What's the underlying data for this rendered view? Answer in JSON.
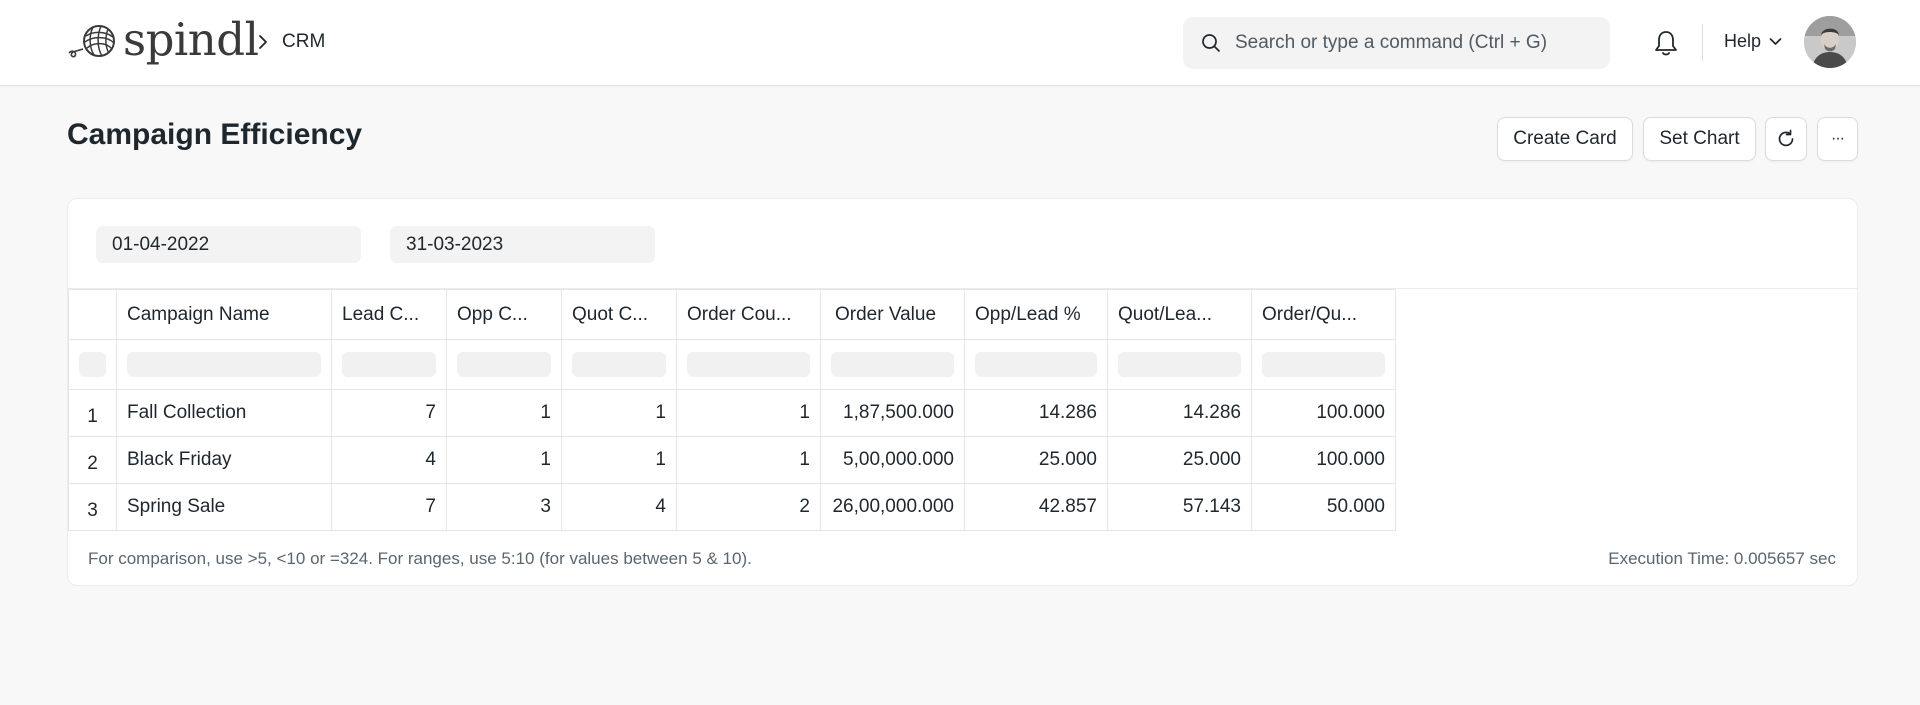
{
  "app": {
    "brand": "spindl",
    "breadcrumb": "CRM"
  },
  "search": {
    "placeholder": "Search or type a command (Ctrl + G)"
  },
  "nav": {
    "help_label": "Help"
  },
  "page": {
    "title": "Campaign Efficiency",
    "actions": {
      "create_card": "Create Card",
      "set_chart": "Set Chart",
      "more": "···"
    }
  },
  "filters": {
    "from_date": "01-04-2022",
    "to_date": "31-03-2023"
  },
  "table": {
    "columns": [
      "Campaign Name",
      "Lead C...",
      "Opp C...",
      "Quot C...",
      "Order Cou...",
      "Order Value",
      "Opp/Lead %",
      "Quot/Lea...",
      "Order/Qu..."
    ],
    "rows": [
      {
        "index": "1",
        "cells": [
          "Fall Collection",
          "7",
          "1",
          "1",
          "1",
          "1,87,500.000",
          "14.286",
          "14.286",
          "100.000"
        ]
      },
      {
        "index": "2",
        "cells": [
          "Black Friday",
          "4",
          "1",
          "1",
          "1",
          "5,00,000.000",
          "25.000",
          "25.000",
          "100.000"
        ]
      },
      {
        "index": "3",
        "cells": [
          "Spring Sale",
          "7",
          "3",
          "4",
          "2",
          "26,00,000.000",
          "42.857",
          "57.143",
          "50.000"
        ]
      }
    ]
  },
  "footer": {
    "hint": "For comparison, use >5, <10 or =324. For ranges, use 5:10 (for values between 5 & 10).",
    "execution_time": "Execution Time: 0.005657 sec"
  },
  "icons": {
    "logo": "yarn-ball-icon",
    "breadcrumb_separator": "chevron-right-icon",
    "search": "search-icon",
    "notifications": "bell-icon",
    "help_dropdown": "chevron-down-icon",
    "refresh": "refresh-icon"
  }
}
